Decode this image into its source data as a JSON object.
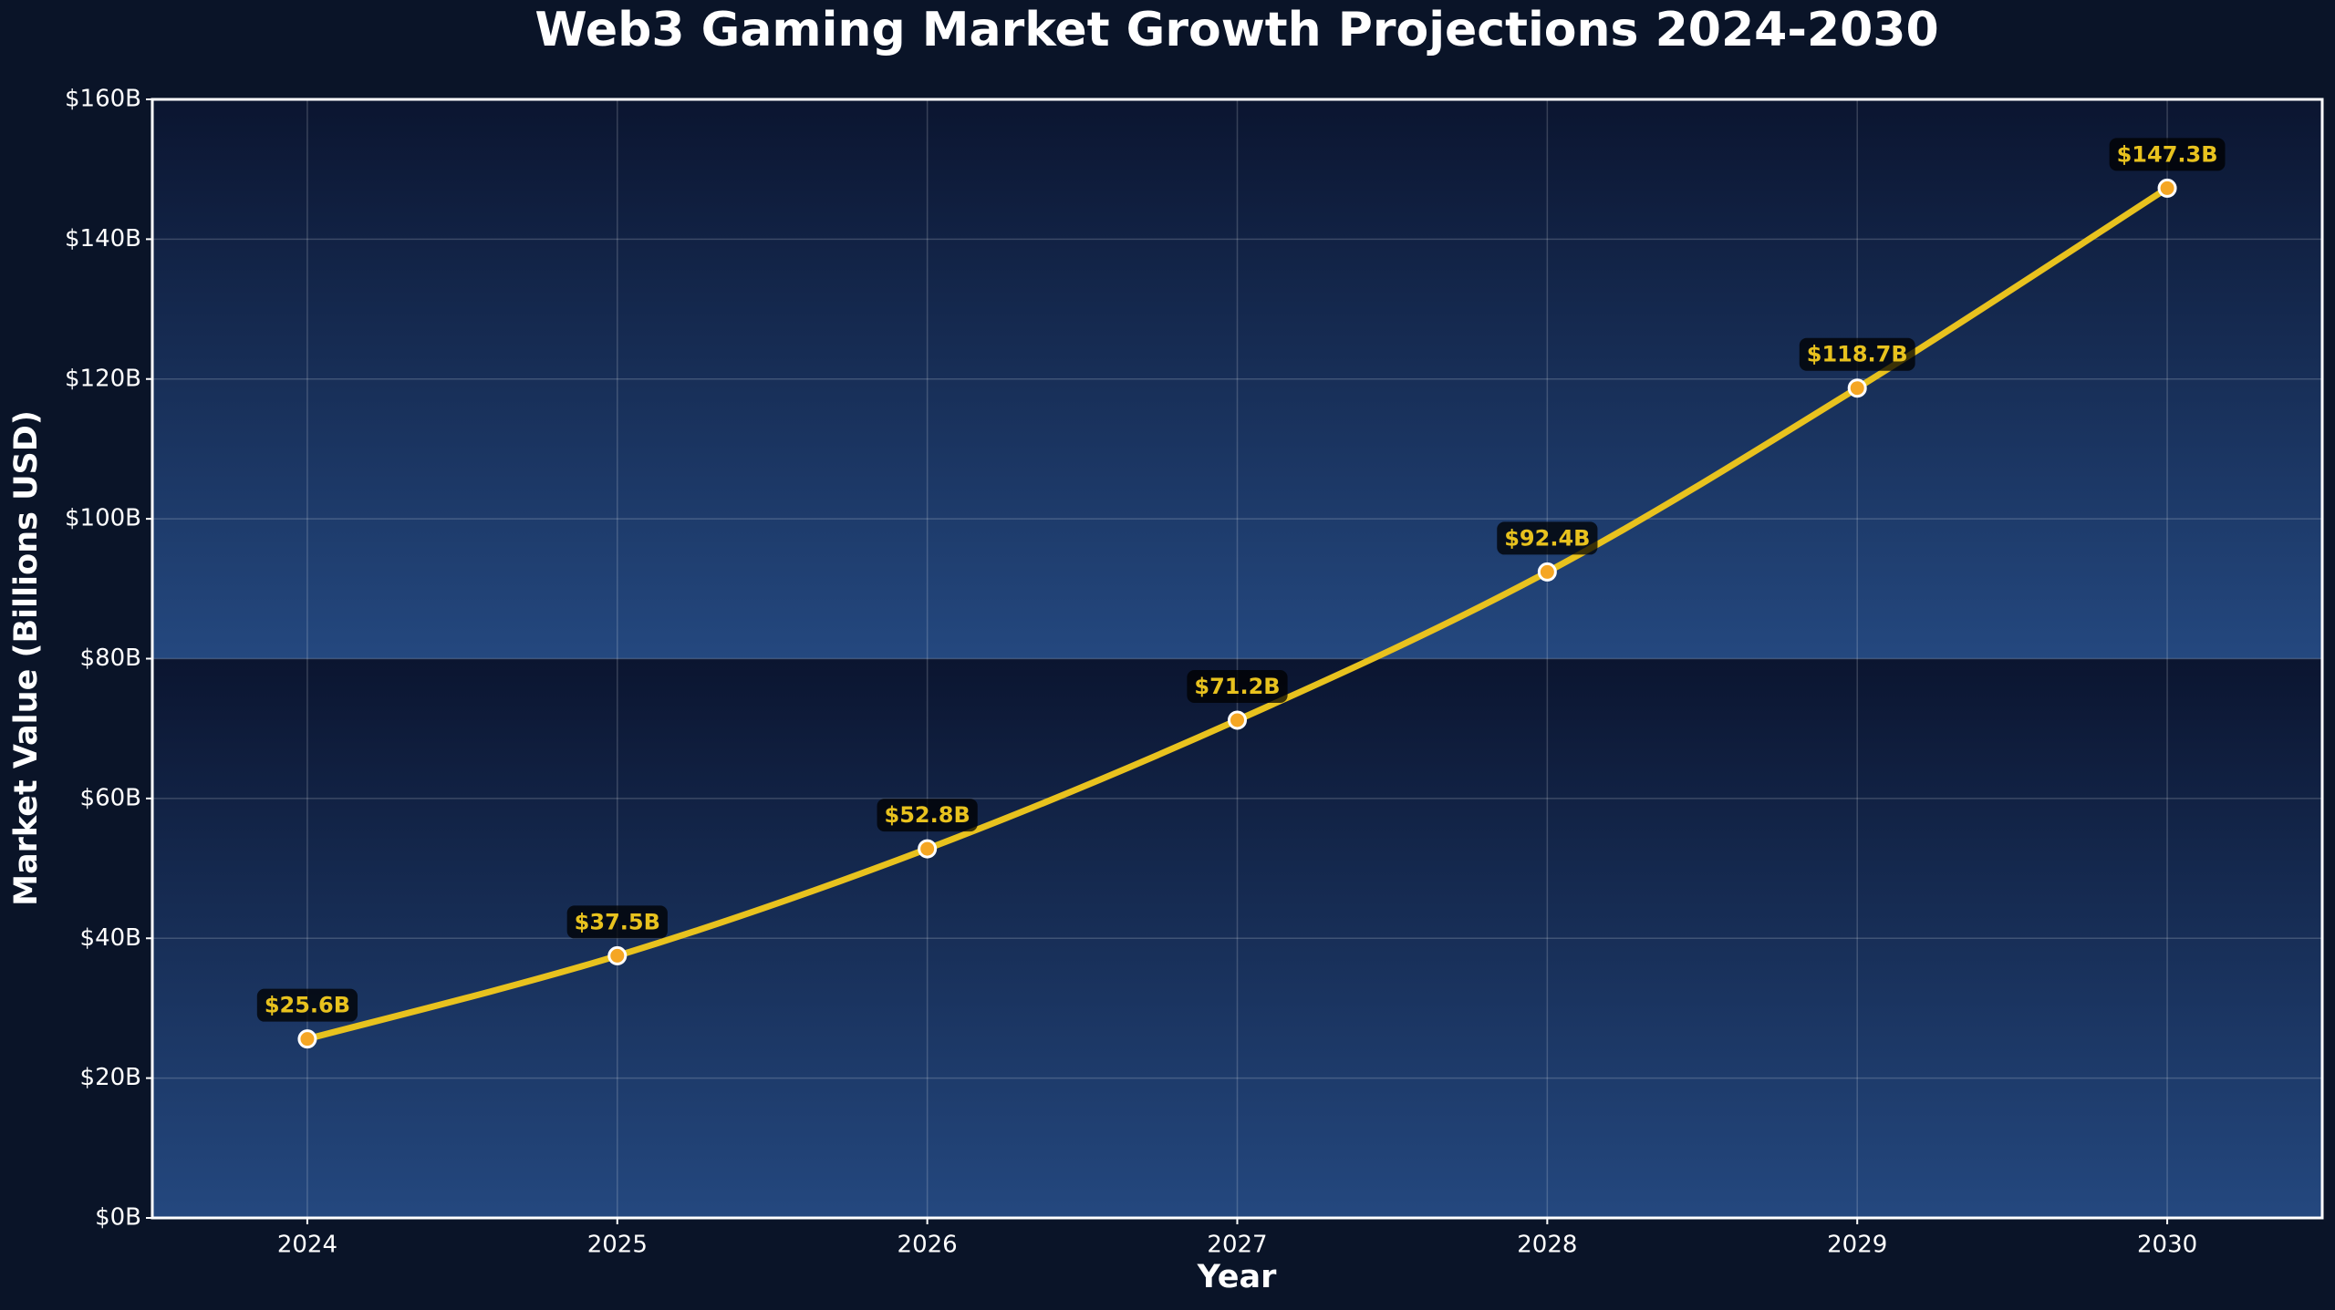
{
  "chart_data": {
    "type": "line",
    "title": "Web3 Gaming Market Growth Projections 2024-2030",
    "x_label": "Year",
    "y_label": "Market Value (Billions USD)",
    "x": [
      2024,
      2025,
      2026,
      2027,
      2028,
      2029,
      2030
    ],
    "values": [
      25.6,
      37.5,
      52.8,
      71.2,
      92.4,
      118.7,
      147.3
    ],
    "value_labels": [
      "$25.6B",
      "$37.5B",
      "$52.8B",
      "$71.2B",
      "$92.4B",
      "$118.7B",
      "$147.3B"
    ],
    "color": "#e8c21e",
    "marker_color": "#f5a623",
    "xlim": [
      2023.5,
      2030.5
    ],
    "xticks": [
      2024,
      2025,
      2026,
      2027,
      2028,
      2029,
      2030
    ],
    "ylim": [
      0,
      160
    ],
    "yticks": [
      {
        "value": 0,
        "label": "$0B"
      },
      {
        "value": 20,
        "label": "$20B"
      },
      {
        "value": 40,
        "label": "$40B"
      },
      {
        "value": 60,
        "label": "$60B"
      },
      {
        "value": 80,
        "label": "$80B"
      },
      {
        "value": 100,
        "label": "$100B"
      },
      {
        "value": 120,
        "label": "$120B"
      },
      {
        "value": 140,
        "label": "$140B"
      },
      {
        "value": 160,
        "label": "$160B"
      }
    ],
    "grid": true
  }
}
